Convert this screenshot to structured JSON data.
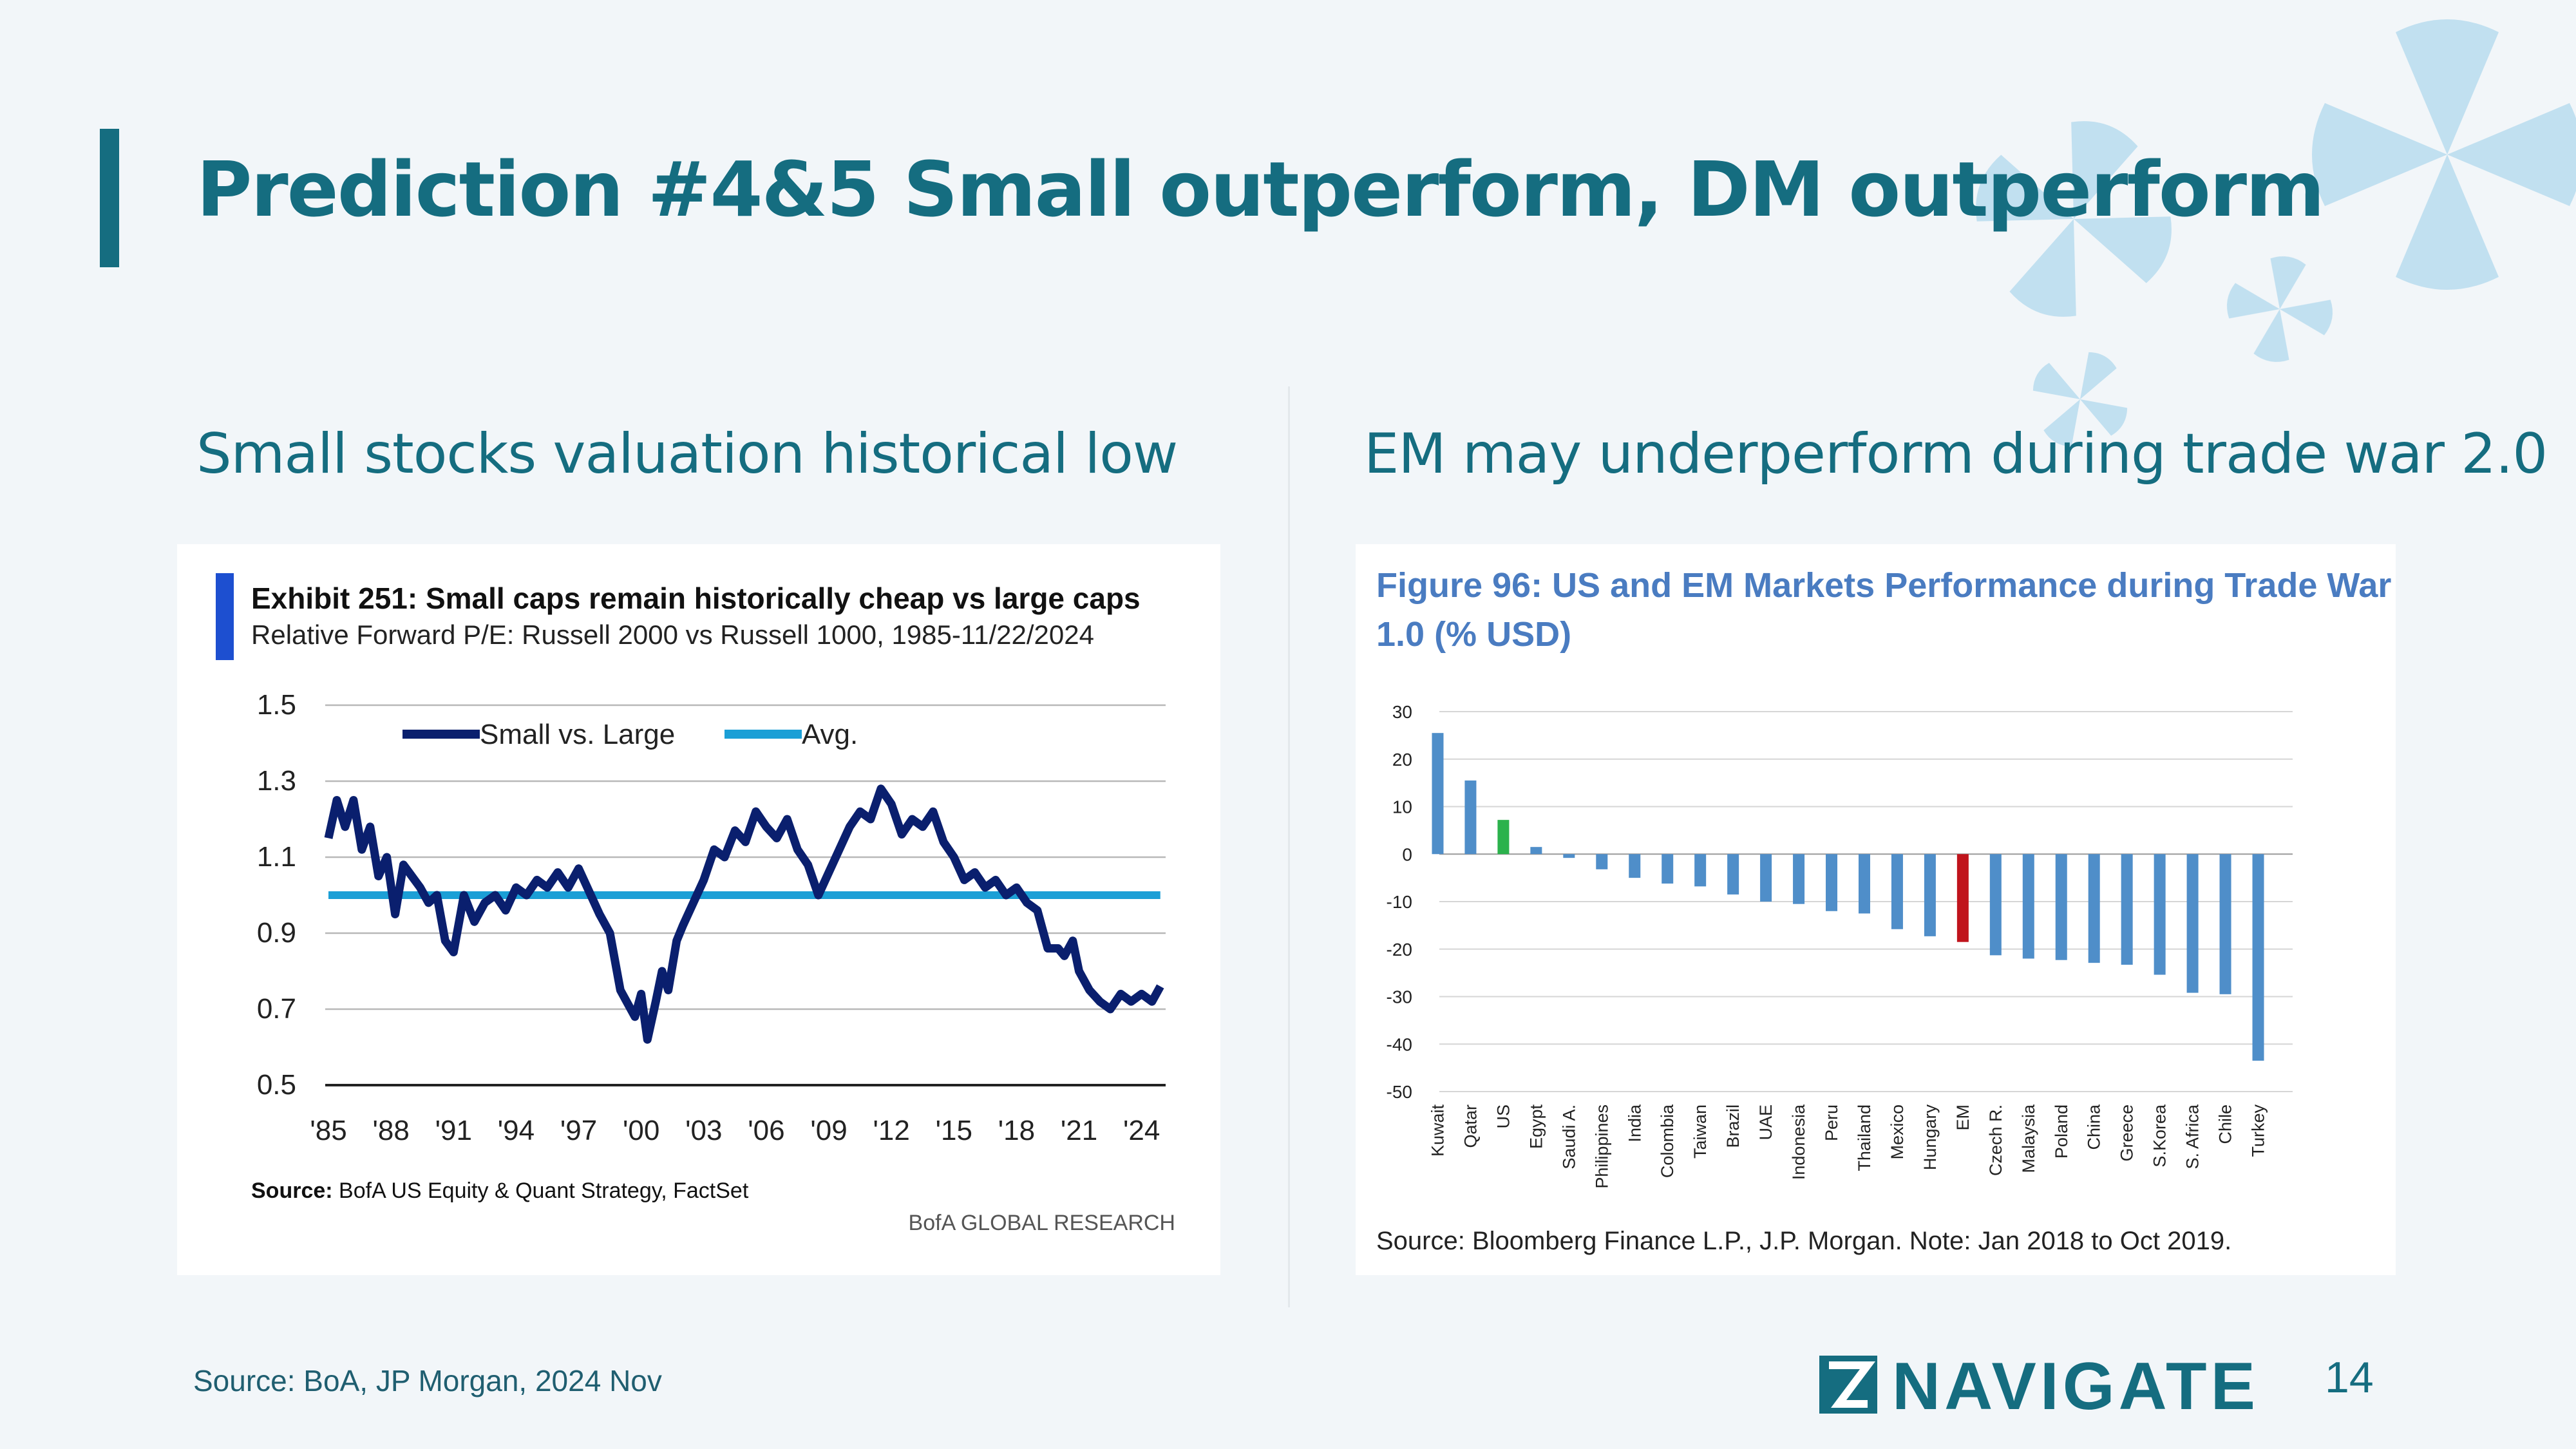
{
  "slide": {
    "title": "Prediction #4&5 Small outperform, DM outperform",
    "left_subtitle": "Small stocks valuation historical low",
    "right_subtitle": "EM may underperform during trade war 2.0",
    "footer_source": "Source:  BoA, JP Morgan, 2024 Nov",
    "page_number": "14",
    "logo_text": "NAVIGATE"
  },
  "colors": {
    "brand": "#156d80",
    "small_vs_large": "#0a1f6e",
    "avg": "#1b9fd6",
    "bar_default": "#4f8ec9",
    "bar_us": "#2bb24c",
    "bar_em": "#c0141c",
    "fig_title": "#4a7cc1"
  },
  "chart_data": [
    {
      "type": "line",
      "title": "Exhibit 251: Small caps remain historically cheap vs large caps",
      "subtitle": "Relative Forward P/E: Russell 2000 vs Russell 1000, 1985-11/22/2024",
      "ylim": [
        0.5,
        1.5
      ],
      "yticks": [
        "1.5",
        "1.3",
        "1.1",
        "0.9",
        "0.7",
        "0.5"
      ],
      "xlim": [
        1985,
        2025
      ],
      "xticks": [
        "'85",
        "'88",
        "'91",
        "'94",
        "'97",
        "'00",
        "'03",
        "'06",
        "'09",
        "'12",
        "'15",
        "'18",
        "'21",
        "'24"
      ],
      "legend_position": "top",
      "series": [
        {
          "name": "Small vs. Large",
          "x": [
            1985,
            1985.4,
            1985.8,
            1986.2,
            1986.6,
            1987,
            1987.4,
            1987.8,
            1988.2,
            1988.6,
            1989,
            1989.4,
            1989.8,
            1990.2,
            1990.6,
            1991,
            1991.5,
            1992,
            1992.5,
            1993,
            1993.5,
            1994,
            1994.5,
            1995,
            1995.5,
            1996,
            1996.5,
            1997,
            1997.5,
            1998,
            1998.5,
            1999,
            1999.3,
            1999.7,
            2000,
            2000.3,
            2000.7,
            2001,
            2001.3,
            2001.7,
            2002,
            2002.5,
            2003,
            2003.5,
            2004,
            2004.5,
            2005,
            2005.5,
            2006,
            2006.5,
            2007,
            2007.5,
            2008,
            2008.5,
            2009,
            2009.5,
            2010,
            2010.5,
            2011,
            2011.5,
            2012,
            2012.5,
            2013,
            2013.5,
            2014,
            2014.5,
            2015,
            2015.5,
            2016,
            2016.5,
            2017,
            2017.5,
            2018,
            2018.5,
            2019,
            2019.5,
            2020,
            2020.3,
            2020.7,
            2021,
            2021.5,
            2022,
            2022.5,
            2023,
            2023.5,
            2024,
            2024.5,
            2024.9
          ],
          "values": [
            1.15,
            1.25,
            1.18,
            1.25,
            1.12,
            1.18,
            1.05,
            1.1,
            0.95,
            1.08,
            1.05,
            1.02,
            0.98,
            1.0,
            0.88,
            0.85,
            1.0,
            0.93,
            0.98,
            1.0,
            0.96,
            1.02,
            1.0,
            1.04,
            1.02,
            1.06,
            1.02,
            1.07,
            1.01,
            0.95,
            0.9,
            0.75,
            0.72,
            0.68,
            0.74,
            0.62,
            0.72,
            0.8,
            0.75,
            0.88,
            0.92,
            0.98,
            1.04,
            1.12,
            1.1,
            1.17,
            1.14,
            1.22,
            1.18,
            1.15,
            1.2,
            1.12,
            1.08,
            1.0,
            1.06,
            1.12,
            1.18,
            1.22,
            1.2,
            1.28,
            1.24,
            1.16,
            1.2,
            1.18,
            1.22,
            1.14,
            1.1,
            1.04,
            1.06,
            1.02,
            1.04,
            1.0,
            1.02,
            0.98,
            0.96,
            0.86,
            0.86,
            0.84,
            0.88,
            0.8,
            0.75,
            0.72,
            0.7,
            0.74,
            0.72,
            0.74,
            0.72,
            0.76
          ]
        },
        {
          "name": "Avg.",
          "x": [
            1985,
            2024.9
          ],
          "values": [
            1.0,
            1.0
          ]
        }
      ],
      "source": "Source: BofA US Equity & Quant Strategy, FactSet",
      "source_label": "Source:",
      "source_text": " BofA US Equity & Quant Strategy, FactSet",
      "credit": "BofA GLOBAL RESEARCH"
    },
    {
      "type": "bar",
      "title_line1": "Figure 96: US and EM Markets Performance during Trade War",
      "title_line2": "1.0 (% USD)",
      "ylim": [
        -50,
        30
      ],
      "yticks": [
        "30",
        "20",
        "10",
        "0",
        "-10",
        "-20",
        "-30",
        "-40",
        "-50"
      ],
      "categories": [
        "Kuwait",
        "Qatar",
        "US",
        "Egypt",
        "Saudi A.",
        "Philippines",
        "India",
        "Colombia",
        "Taiwan",
        "Brazil",
        "UAE",
        "Indonesia",
        "Peru",
        "Thailand",
        "Mexico",
        "Hungary",
        "EM",
        "Czech R.",
        "Malaysia",
        "Poland",
        "China",
        "Greece",
        "S.Korea",
        "S. Africa",
        "Chile",
        "Turkey"
      ],
      "values": [
        25.5,
        15.5,
        7.2,
        1.5,
        -0.8,
        -3.2,
        -5.0,
        -6.2,
        -6.8,
        -8.5,
        -10.0,
        -10.5,
        -12.0,
        -12.5,
        -15.8,
        -17.3,
        -18.5,
        -21.3,
        -22.0,
        -22.3,
        -22.9,
        -23.3,
        -25.4,
        -29.2,
        -29.5,
        -43.5
      ],
      "highlight": {
        "US": "#2bb24c",
        "EM": "#c0141c"
      },
      "source": "Source: Bloomberg Finance L.P., J.P. Morgan. Note: Jan 2018 to Oct 2019."
    }
  ]
}
